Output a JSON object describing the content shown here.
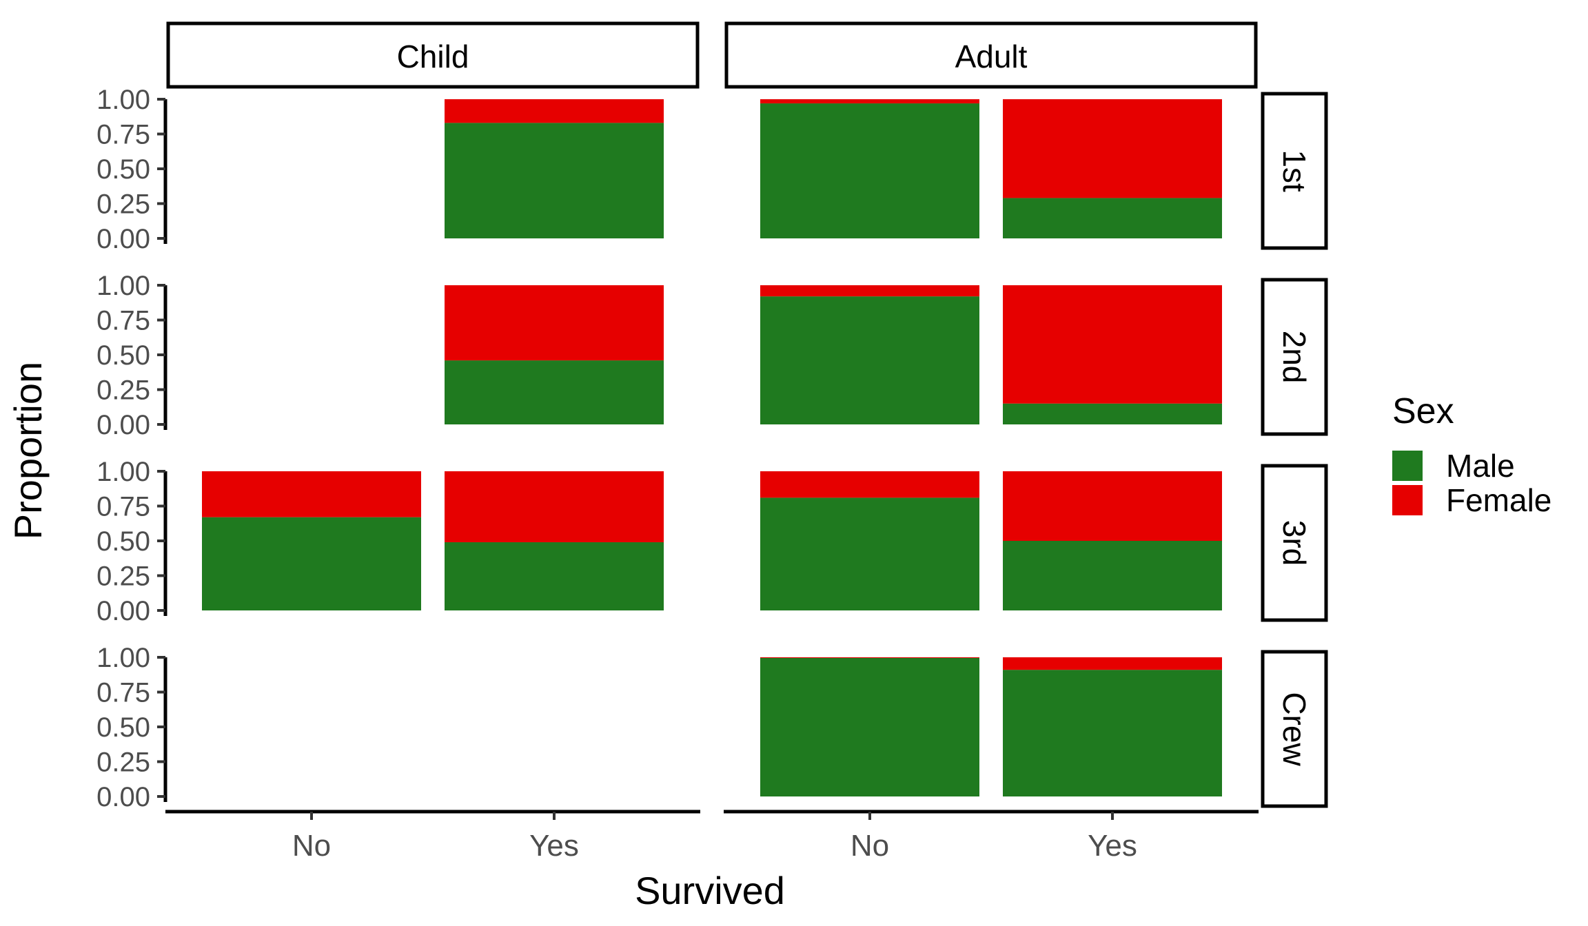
{
  "chart_data": {
    "type": "bar",
    "stacked": true,
    "xlabel": "Survived",
    "ylabel": "Proportion",
    "ylim": [
      0,
      1
    ],
    "yticks": [
      "0.00",
      "0.25",
      "0.50",
      "0.75",
      "1.00"
    ],
    "categories": [
      "No",
      "Yes"
    ],
    "col_facets": [
      "Child",
      "Adult"
    ],
    "row_facets": [
      "1st",
      "2nd",
      "3rd",
      "Crew"
    ],
    "legend": {
      "title": "Sex",
      "position": "right",
      "entries": [
        {
          "name": "Male",
          "color": "#1f7a1f"
        },
        {
          "name": "Female",
          "color": "#e60000"
        }
      ]
    },
    "grid": false,
    "panels": [
      {
        "row": "1st",
        "col": "Child",
        "bars": [
          null,
          {
            "Male": 0.83,
            "Female": 0.17
          }
        ]
      },
      {
        "row": "1st",
        "col": "Adult",
        "bars": [
          {
            "Male": 0.97,
            "Female": 0.03
          },
          {
            "Male": 0.29,
            "Female": 0.71
          }
        ]
      },
      {
        "row": "2nd",
        "col": "Child",
        "bars": [
          null,
          {
            "Male": 0.46,
            "Female": 0.54
          }
        ]
      },
      {
        "row": "2nd",
        "col": "Adult",
        "bars": [
          {
            "Male": 0.92,
            "Female": 0.08
          },
          {
            "Male": 0.15,
            "Female": 0.85
          }
        ]
      },
      {
        "row": "3rd",
        "col": "Child",
        "bars": [
          {
            "Male": 0.67,
            "Female": 0.33
          },
          {
            "Male": 0.49,
            "Female": 0.51
          }
        ]
      },
      {
        "row": "3rd",
        "col": "Adult",
        "bars": [
          {
            "Male": 0.81,
            "Female": 0.19
          },
          {
            "Male": 0.5,
            "Female": 0.5
          }
        ]
      },
      {
        "row": "Crew",
        "col": "Child",
        "bars": [
          null,
          null
        ]
      },
      {
        "row": "Crew",
        "col": "Adult",
        "bars": [
          {
            "Male": 0.995,
            "Female": 0.005
          },
          {
            "Male": 0.91,
            "Female": 0.09
          }
        ]
      }
    ]
  }
}
